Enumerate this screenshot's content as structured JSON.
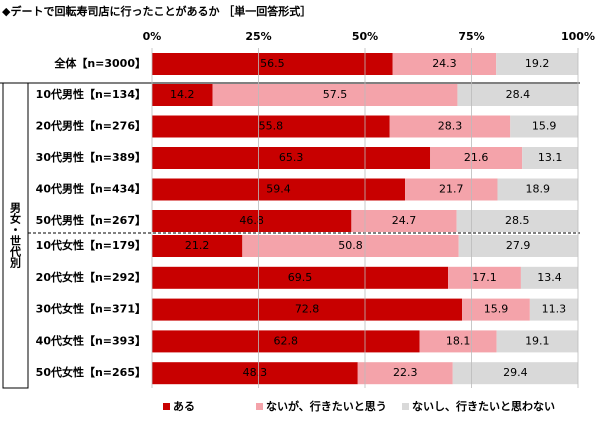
{
  "chart_data": {
    "type": "bar",
    "orientation": "horizontal",
    "stacked": true,
    "title": "◆デートで回転寿司店に行ったことがあるか ［単一回答形式］",
    "group_label": "男女・世代別",
    "categories": [
      "全体【n=3000】",
      "10代男性【n=134】",
      "20代男性【n=276】",
      "30代男性【n=389】",
      "40代男性【n=434】",
      "50代男性【n=267】",
      "10代女性【n=179】",
      "20代女性【n=292】",
      "30代女性【n=371】",
      "40代女性【n=393】",
      "50代女性【n=265】"
    ],
    "series": [
      {
        "name": "ある",
        "color": "#c80000",
        "values": [
          56.5,
          14.2,
          55.8,
          65.3,
          59.4,
          46.8,
          21.2,
          69.5,
          72.8,
          62.8,
          48.3
        ]
      },
      {
        "name": "ないが、行きたいと思う",
        "color": "#f4a3aa",
        "values": [
          24.3,
          57.5,
          28.3,
          21.6,
          21.7,
          24.7,
          50.8,
          17.1,
          15.9,
          18.1,
          22.3
        ]
      },
      {
        "name": "ないし、行きたいと思わない",
        "color": "#d9d9d9",
        "values": [
          19.2,
          28.4,
          15.9,
          13.1,
          18.9,
          28.5,
          27.9,
          13.4,
          11.3,
          19.1,
          29.4
        ]
      }
    ],
    "xlim": [
      0,
      100
    ],
    "xticks": [
      {
        "value": 0,
        "label": "0%"
      },
      {
        "value": 25,
        "label": "25%"
      },
      {
        "value": 50,
        "label": "50%"
      },
      {
        "value": 75,
        "label": "75%"
      },
      {
        "value": 100,
        "label": "100%"
      }
    ],
    "grid": true
  }
}
